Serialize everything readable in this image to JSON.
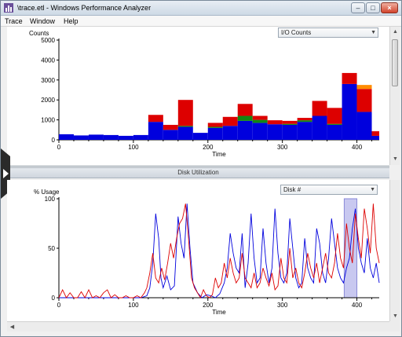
{
  "window": {
    "title": "\\trace.etl - Windows Performance Analyzer",
    "buttons": {
      "minimize": "–",
      "maximize": "□",
      "close": "×"
    }
  },
  "menu": [
    "Trace",
    "Window",
    "Help"
  ],
  "panels": {
    "io": {
      "dropdown": "I/O Counts"
    },
    "disk": {
      "header": "Disk Utilization",
      "dropdown": "Disk #"
    }
  },
  "colors": {
    "blue": "#0000dd",
    "red": "#dd0000",
    "green": "#118811",
    "orange": "#ff8c00",
    "highlight": "#c8c8f0"
  },
  "chart_data": [
    {
      "type": "bar",
      "stacked": true,
      "ylabel": "Counts",
      "xlabel": "Time",
      "xlim": [
        0,
        430
      ],
      "ylim": [
        0,
        5000
      ],
      "x_ticks": [
        0,
        100,
        200,
        300,
        400
      ],
      "y_ticks": [
        0,
        1000,
        2000,
        3000,
        4000,
        5000
      ],
      "grid": false,
      "bars": [
        {
          "x0": 0,
          "x1": 20,
          "blue": 280,
          "green": 0,
          "red": 0,
          "orange": 0
        },
        {
          "x0": 20,
          "x1": 40,
          "blue": 220,
          "green": 0,
          "red": 0,
          "orange": 0
        },
        {
          "x0": 40,
          "x1": 60,
          "blue": 260,
          "green": 0,
          "red": 0,
          "orange": 0
        },
        {
          "x0": 60,
          "x1": 80,
          "blue": 240,
          "green": 0,
          "red": 0,
          "orange": 0
        },
        {
          "x0": 80,
          "x1": 100,
          "blue": 200,
          "green": 0,
          "red": 0,
          "orange": 0
        },
        {
          "x0": 100,
          "x1": 120,
          "blue": 240,
          "green": 0,
          "red": 0,
          "orange": 0
        },
        {
          "x0": 120,
          "x1": 140,
          "blue": 900,
          "green": 0,
          "red": 350,
          "orange": 0
        },
        {
          "x0": 140,
          "x1": 160,
          "blue": 500,
          "green": 0,
          "red": 250,
          "orange": 0
        },
        {
          "x0": 160,
          "x1": 180,
          "blue": 650,
          "green": 50,
          "red": 1300,
          "orange": 0
        },
        {
          "x0": 180,
          "x1": 200,
          "blue": 350,
          "green": 0,
          "red": 0,
          "orange": 0
        },
        {
          "x0": 200,
          "x1": 220,
          "blue": 600,
          "green": 50,
          "red": 200,
          "orange": 0
        },
        {
          "x0": 220,
          "x1": 240,
          "blue": 700,
          "green": 0,
          "red": 450,
          "orange": 0
        },
        {
          "x0": 240,
          "x1": 260,
          "blue": 950,
          "green": 250,
          "red": 600,
          "orange": 0
        },
        {
          "x0": 260,
          "x1": 280,
          "blue": 850,
          "green": 150,
          "red": 200,
          "orange": 0
        },
        {
          "x0": 280,
          "x1": 300,
          "blue": 780,
          "green": 0,
          "red": 200,
          "orange": 0
        },
        {
          "x0": 300,
          "x1": 320,
          "blue": 750,
          "green": 50,
          "red": 150,
          "orange": 0
        },
        {
          "x0": 320,
          "x1": 340,
          "blue": 900,
          "green": 80,
          "red": 120,
          "orange": 0
        },
        {
          "x0": 340,
          "x1": 360,
          "blue": 1200,
          "green": 0,
          "red": 750,
          "orange": 0
        },
        {
          "x0": 360,
          "x1": 380,
          "blue": 750,
          "green": 50,
          "red": 800,
          "orange": 0
        },
        {
          "x0": 380,
          "x1": 400,
          "blue": 2800,
          "green": 0,
          "red": 550,
          "orange": 0
        },
        {
          "x0": 400,
          "x1": 420,
          "blue": 1400,
          "green": 0,
          "red": 1150,
          "orange": 200
        },
        {
          "x0": 420,
          "x1": 430,
          "blue": 200,
          "green": 0,
          "red": 230,
          "orange": 0
        }
      ]
    },
    {
      "type": "line",
      "ylabel": "% Usage",
      "xlabel": "Time",
      "xlim": [
        0,
        430
      ],
      "ylim": [
        0,
        100
      ],
      "x_ticks": [
        0,
        100,
        200,
        300,
        400
      ],
      "y_ticks": [
        0,
        50,
        100
      ],
      "grid": false,
      "highlight": [
        383,
        400
      ],
      "series": [
        {
          "color": "blue",
          "x": [
            0,
            10,
            20,
            30,
            40,
            50,
            60,
            70,
            80,
            90,
            100,
            110,
            118,
            122,
            126,
            130,
            134,
            137,
            140,
            145,
            150,
            155,
            160,
            164,
            168,
            172,
            176,
            180,
            186,
            192,
            198,
            204,
            210,
            216,
            222,
            226,
            230,
            234,
            238,
            242,
            246,
            250,
            254,
            258,
            262,
            266,
            270,
            274,
            278,
            282,
            286,
            290,
            294,
            298,
            302,
            306,
            310,
            314,
            318,
            322,
            326,
            330,
            334,
            338,
            342,
            346,
            350,
            354,
            358,
            362,
            366,
            370,
            374,
            378,
            382,
            386,
            390,
            394,
            398,
            402,
            406,
            410,
            414,
            418,
            422,
            426,
            430
          ],
          "y": [
            0,
            0,
            0,
            0,
            0,
            0,
            0,
            0,
            0,
            0,
            0,
            0,
            2,
            10,
            35,
            85,
            60,
            20,
            10,
            22,
            8,
            12,
            82,
            55,
            40,
            95,
            50,
            15,
            5,
            0,
            3,
            2,
            0,
            4,
            15,
            30,
            65,
            45,
            30,
            25,
            65,
            10,
            35,
            85,
            40,
            15,
            20,
            70,
            35,
            15,
            30,
            90,
            45,
            20,
            15,
            25,
            80,
            50,
            20,
            10,
            15,
            60,
            30,
            20,
            15,
            70,
            55,
            25,
            15,
            40,
            80,
            55,
            30,
            20,
            15,
            30,
            40,
            70,
            90,
            50,
            35,
            25,
            60,
            30,
            20,
            35,
            15
          ]
        },
        {
          "color": "red",
          "x": [
            0,
            5,
            10,
            15,
            20,
            25,
            30,
            35,
            40,
            45,
            50,
            55,
            60,
            65,
            70,
            75,
            80,
            85,
            90,
            95,
            100,
            105,
            110,
            115,
            118,
            122,
            126,
            130,
            134,
            138,
            142,
            146,
            150,
            154,
            158,
            162,
            166,
            170,
            174,
            178,
            182,
            186,
            190,
            194,
            198,
            202,
            206,
            210,
            214,
            218,
            222,
            226,
            230,
            234,
            238,
            242,
            246,
            250,
            254,
            258,
            262,
            266,
            270,
            274,
            278,
            282,
            286,
            290,
            294,
            298,
            302,
            306,
            310,
            314,
            318,
            322,
            326,
            330,
            334,
            338,
            342,
            346,
            350,
            354,
            358,
            362,
            366,
            370,
            374,
            378,
            382,
            386,
            390,
            394,
            398,
            402,
            406,
            410,
            414,
            418,
            422,
            426,
            430
          ],
          "y": [
            0,
            8,
            0,
            5,
            0,
            0,
            6,
            0,
            8,
            0,
            2,
            0,
            5,
            8,
            0,
            3,
            0,
            0,
            2,
            0,
            0,
            2,
            0,
            5,
            10,
            25,
            45,
            20,
            15,
            30,
            18,
            35,
            55,
            40,
            60,
            75,
            80,
            95,
            60,
            20,
            10,
            5,
            0,
            8,
            2,
            0,
            3,
            20,
            10,
            15,
            35,
            20,
            40,
            25,
            15,
            20,
            45,
            20,
            15,
            10,
            25,
            10,
            15,
            30,
            20,
            12,
            25,
            8,
            12,
            40,
            20,
            15,
            50,
            20,
            30,
            15,
            10,
            25,
            45,
            30,
            20,
            35,
            15,
            30,
            45,
            25,
            20,
            35,
            65,
            40,
            30,
            75,
            50,
            35,
            85,
            60,
            40,
            90,
            70,
            45,
            95,
            50,
            35
          ]
        }
      ]
    }
  ]
}
